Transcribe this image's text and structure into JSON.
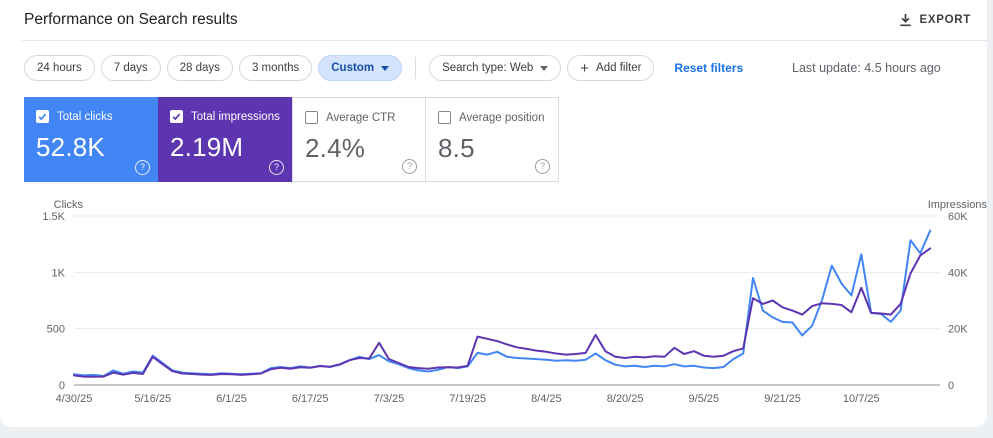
{
  "page": {
    "title": "Performance on Search results"
  },
  "header": {
    "export_label": "EXPORT"
  },
  "toolbar": {
    "date_chips": [
      {
        "label": "24 hours",
        "selected": false,
        "has_caret": false
      },
      {
        "label": "7 days",
        "selected": false,
        "has_caret": false
      },
      {
        "label": "28 days",
        "selected": false,
        "has_caret": false
      },
      {
        "label": "3 months",
        "selected": false,
        "has_caret": false
      },
      {
        "label": "Custom",
        "selected": true,
        "has_caret": true
      }
    ],
    "search_type_label": "Search type: Web",
    "add_filter_plus": "+",
    "add_filter_label": "Add filter",
    "reset_filters_label": "Reset filters",
    "last_update": "Last update: 4.5 hours ago"
  },
  "icons": {
    "help_glyph": "?"
  },
  "metric_cards": [
    {
      "id": "total-clicks",
      "label": "Total clicks",
      "value": "52.8K",
      "checked": true,
      "bg": "#4285f4"
    },
    {
      "id": "total-impressions",
      "label": "Total impressions",
      "value": "2.19M",
      "checked": true,
      "bg": "#5e35b1"
    },
    {
      "id": "average-ctr",
      "label": "Average CTR",
      "value": "2.4%",
      "checked": false,
      "bg": null
    },
    {
      "id": "average-position",
      "label": "Average position",
      "value": "8.5",
      "checked": false,
      "bg": null
    }
  ],
  "chart_data": {
    "type": "line",
    "grid": true,
    "legend": "none (series colors match metric cards)",
    "left_axis": {
      "title": "Clicks",
      "min": 0,
      "max": 1500,
      "ticks": [
        {
          "v": 1500,
          "label": "1.5K"
        },
        {
          "v": 1000,
          "label": "1K"
        },
        {
          "v": 500,
          "label": "500"
        },
        {
          "v": 0,
          "label": "0"
        }
      ]
    },
    "right_axis": {
      "title": "Impressions",
      "min": 0,
      "max": 60000,
      "ticks": [
        {
          "v": 60000,
          "label": "60K"
        },
        {
          "v": 40000,
          "label": "40K"
        },
        {
          "v": 20000,
          "label": "20K"
        },
        {
          "v": 0,
          "label": "0"
        }
      ]
    },
    "x_axis": {
      "unit": "days since 4/30/25",
      "day_max": 176,
      "ticks": [
        {
          "day": 0,
          "label": "4/30/25"
        },
        {
          "day": 16,
          "label": "5/16/25"
        },
        {
          "day": 32,
          "label": "6/1/25"
        },
        {
          "day": 48,
          "label": "6/17/25"
        },
        {
          "day": 64,
          "label": "7/3/25"
        },
        {
          "day": 80,
          "label": "7/19/25"
        },
        {
          "day": 96,
          "label": "8/4/25"
        },
        {
          "day": 112,
          "label": "8/20/25"
        },
        {
          "day": 128,
          "label": "9/5/25"
        },
        {
          "day": 144,
          "label": "9/21/25"
        },
        {
          "day": 160,
          "label": "10/7/25"
        }
      ]
    },
    "sampling": {
      "day_start": 0,
      "day_step": 2
    },
    "series": [
      {
        "name": "Total clicks",
        "axis": "left",
        "color": "#4285f4",
        "values": [
          95,
          85,
          90,
          80,
          130,
          100,
          120,
          110,
          260,
          195,
          130,
          110,
          105,
          100,
          95,
          105,
          100,
          95,
          100,
          105,
          150,
          160,
          150,
          165,
          155,
          170,
          160,
          180,
          220,
          250,
          230,
          265,
          210,
          185,
          150,
          130,
          120,
          135,
          160,
          150,
          165,
          285,
          270,
          295,
          250,
          240,
          235,
          230,
          225,
          215,
          220,
          215,
          225,
          280,
          220,
          180,
          165,
          170,
          160,
          170,
          165,
          185,
          165,
          170,
          155,
          150,
          160,
          230,
          280,
          950,
          660,
          600,
          560,
          555,
          440,
          525,
          750,
          1060,
          900,
          795,
          1160,
          640,
          630,
          560,
          660,
          1285,
          1170,
          1370
        ]
      },
      {
        "name": "Total impressions",
        "axis": "right",
        "color": "#5e35b1",
        "values": [
          3400,
          3000,
          2900,
          3000,
          4400,
          3700,
          4300,
          3900,
          10000,
          7400,
          4900,
          4100,
          3900,
          3700,
          3600,
          3900,
          3800,
          3600,
          3800,
          4100,
          5600,
          6100,
          5800,
          6300,
          6100,
          6700,
          6500,
          7300,
          8800,
          9600,
          9400,
          15000,
          9200,
          7800,
          6400,
          6000,
          5800,
          6200,
          6300,
          6200,
          6800,
          17200,
          16400,
          15600,
          14400,
          13400,
          12800,
          12200,
          11800,
          11200,
          10800,
          11000,
          11400,
          17800,
          12000,
          10000,
          9600,
          10000,
          9800,
          10200,
          10000,
          13200,
          11000,
          12000,
          10400,
          10000,
          10400,
          12000,
          13000,
          30800,
          28800,
          30000,
          27600,
          26400,
          25000,
          28000,
          29000,
          28800,
          28400,
          25800,
          34500,
          25600,
          25400,
          25000,
          28800,
          39600,
          46000,
          48500
        ]
      }
    ]
  }
}
